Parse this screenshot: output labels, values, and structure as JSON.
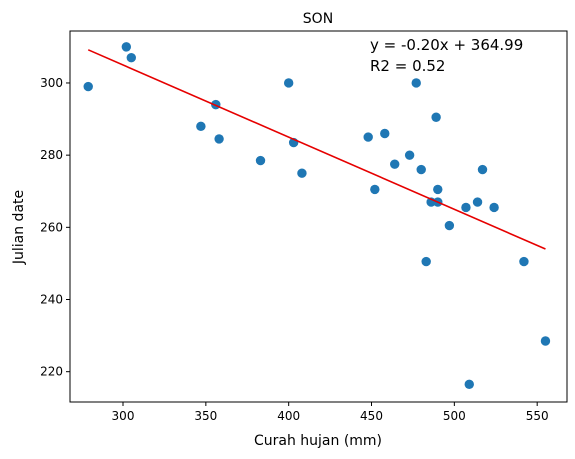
{
  "chart_data": {
    "type": "scatter",
    "title": "SON",
    "xlabel": "Curah hujan (mm)",
    "ylabel": "Julian date",
    "xlim": [
      268,
      568
    ],
    "ylim": [
      211.6,
      314.4
    ],
    "xticks": [
      300,
      350,
      400,
      450,
      500,
      550
    ],
    "yticks": [
      220,
      240,
      260,
      280,
      300
    ],
    "grid": false,
    "colors": {
      "points": "#1f77b4",
      "fit_line": "#e60000"
    },
    "annotations": [
      "y = -0.20x + 364.99",
      "R2 = 0.52"
    ],
    "fit": {
      "slope": -0.2,
      "intercept": 364.99,
      "x_range": [
        279,
        555
      ]
    },
    "points": [
      {
        "x": 279,
        "y": 299
      },
      {
        "x": 302,
        "y": 310
      },
      {
        "x": 305,
        "y": 307
      },
      {
        "x": 347,
        "y": 288
      },
      {
        "x": 356,
        "y": 294
      },
      {
        "x": 358,
        "y": 284.5
      },
      {
        "x": 383,
        "y": 278.5
      },
      {
        "x": 400,
        "y": 300
      },
      {
        "x": 403,
        "y": 283.5
      },
      {
        "x": 408,
        "y": 275
      },
      {
        "x": 448,
        "y": 285
      },
      {
        "x": 452,
        "y": 270.5
      },
      {
        "x": 458,
        "y": 286
      },
      {
        "x": 464,
        "y": 277.5
      },
      {
        "x": 473,
        "y": 280
      },
      {
        "x": 477,
        "y": 300
      },
      {
        "x": 480,
        "y": 276
      },
      {
        "x": 483,
        "y": 250.5
      },
      {
        "x": 486,
        "y": 267
      },
      {
        "x": 489,
        "y": 290.5
      },
      {
        "x": 490,
        "y": 267
      },
      {
        "x": 490,
        "y": 270.5
      },
      {
        "x": 497,
        "y": 260.5
      },
      {
        "x": 507,
        "y": 265.5
      },
      {
        "x": 509,
        "y": 216.5
      },
      {
        "x": 514,
        "y": 267
      },
      {
        "x": 517,
        "y": 276
      },
      {
        "x": 524,
        "y": 265.5
      },
      {
        "x": 542,
        "y": 250.5
      },
      {
        "x": 555,
        "y": 228.5
      }
    ]
  }
}
